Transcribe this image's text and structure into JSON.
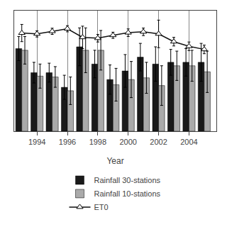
{
  "chart_data": {
    "type": "bar",
    "x": [
      1993,
      1994,
      1995,
      1996,
      1997,
      1998,
      1999,
      2000,
      2001,
      2002,
      2003,
      2004,
      2005
    ],
    "xlabel": "Year",
    "xlim": [
      1992.5,
      2005.8
    ],
    "xticks": [
      1994,
      1996,
      1998,
      2000,
      2002,
      2004
    ],
    "ylim": [
      0,
      700
    ],
    "yticks": [],
    "tick_labels": "x",
    "grid": "x",
    "legend": "bottom",
    "series": [
      {
        "name": "Rainfall 30-stations",
        "type": "bar",
        "color": "#1a1a1a",
        "values": [
          480,
          340,
          340,
          255,
          490,
          390,
          300,
          350,
          430,
          390,
          400,
          400,
          400
        ],
        "errors": [
          70,
          60,
          55,
          70,
          110,
          80,
          85,
          95,
          80,
          100,
          75,
          80,
          110
        ]
      },
      {
        "name": "Rainfall 10-stations",
        "type": "bar",
        "color": "#aaaaaa",
        "values": [
          470,
          320,
          315,
          235,
          470,
          470,
          270,
          300,
          310,
          265,
          380,
          380,
          345
        ],
        "errors": [
          80,
          70,
          60,
          80,
          130,
          115,
          95,
          105,
          90,
          115,
          85,
          90,
          120
        ]
      },
      {
        "name": "ET0",
        "type": "line",
        "color": "#111111",
        "marker": "triangle-up",
        "values": [
          570,
          565,
          580,
          595,
          545,
          540,
          557,
          572,
          577,
          565,
          520,
          493,
          475
        ],
        "errors": [
          50,
          18,
          18,
          18,
          65,
          22,
          18,
          22,
          22,
          80,
          25,
          25,
          25
        ]
      }
    ]
  }
}
